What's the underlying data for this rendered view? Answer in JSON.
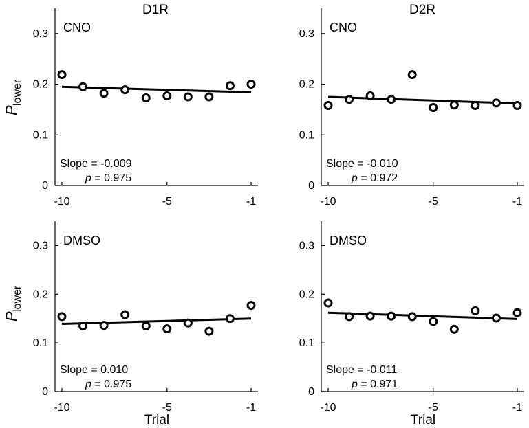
{
  "chart_data": {
    "type": "scatter",
    "y_axis_label": {
      "main": "P",
      "subscript": "lower"
    },
    "x_axis_label": "Trial",
    "column_titles": [
      "D1R",
      "D2R"
    ],
    "xlim": [
      -10,
      -1
    ],
    "ylim": [
      0,
      0.35
    ],
    "x_ticks": [
      -10,
      -5,
      -1
    ],
    "x_tick_labels": [
      "-10",
      "-5",
      "-1"
    ],
    "y_ticks": [
      0,
      0.1,
      0.2,
      0.3
    ],
    "y_tick_labels": [
      "0",
      "0.1",
      "0.2",
      "0.3"
    ],
    "x": [
      -10,
      -9,
      -8,
      -7,
      -6,
      -5,
      -4,
      -3,
      -2,
      -1
    ],
    "panels": [
      {
        "id": "d1r-cno",
        "condition": "CNO",
        "receptor": "D1R",
        "values": [
          0.219,
          0.195,
          0.182,
          0.189,
          0.173,
          0.177,
          0.175,
          0.175,
          0.197,
          0.2
        ],
        "fit": {
          "y_start": 0.195,
          "y_end": 0.184
        },
        "slope_text": "Slope = -0.009",
        "p_value": "= 0.975"
      },
      {
        "id": "d2r-cno",
        "condition": "CNO",
        "receptor": "D2R",
        "values": [
          0.158,
          0.17,
          0.177,
          0.17,
          0.219,
          0.154,
          0.159,
          0.158,
          0.163,
          0.158
        ],
        "fit": {
          "y_start": 0.175,
          "y_end": 0.162
        },
        "slope_text": "Slope = -0.010",
        "p_value": "= 0.972"
      },
      {
        "id": "d1r-dmso",
        "condition": "DMSO",
        "receptor": "D1R",
        "values": [
          0.154,
          0.135,
          0.136,
          0.158,
          0.135,
          0.129,
          0.141,
          0.124,
          0.15,
          0.177
        ],
        "fit": {
          "y_start": 0.139,
          "y_end": 0.15
        },
        "slope_text": "Slope = 0.010",
        "p_value": "= 0.975"
      },
      {
        "id": "d2r-dmso",
        "condition": "DMSO",
        "receptor": "D2R",
        "values": [
          0.182,
          0.154,
          0.155,
          0.155,
          0.154,
          0.144,
          0.128,
          0.166,
          0.151,
          0.162
        ],
        "fit": {
          "y_start": 0.162,
          "y_end": 0.149
        },
        "slope_text": "Slope = -0.011",
        "p_value": "= 0.971"
      }
    ],
    "p_symbol": "p"
  }
}
